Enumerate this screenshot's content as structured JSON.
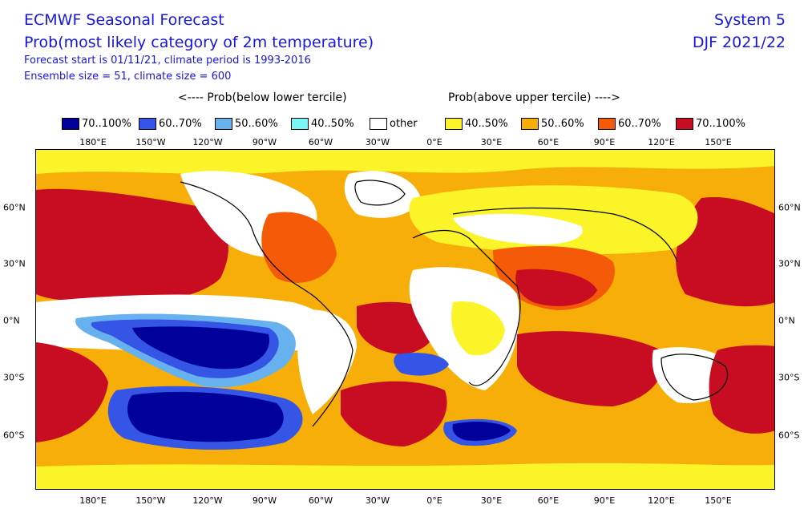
{
  "header": {
    "title": "ECMWF Seasonal Forecast",
    "subtitle": "Prob(most likely category of 2m temperature)",
    "line1": "Forecast start is 01/11/21, climate period is 1993-2016",
    "line2": "Ensemble size = 51, climate size = 600",
    "system": "System 5",
    "season": "DJF 2021/22"
  },
  "legend": {
    "below_header": "<---- Prob(below lower tercile)",
    "above_header": "Prob(above upper tercile) ---->",
    "items": [
      {
        "label": "70..100%",
        "color": "#00009a"
      },
      {
        "label": "60..70%",
        "color": "#3455e6"
      },
      {
        "label": "50..60%",
        "color": "#67b1ef"
      },
      {
        "label": "40..50%",
        "color": "#7cf5f5"
      },
      {
        "label": "other",
        "color": "#ffffff"
      },
      {
        "label": "40..50%",
        "color": "#fbf429"
      },
      {
        "label": "50..60%",
        "color": "#f7ae08"
      },
      {
        "label": "60..70%",
        "color": "#f45a07"
      },
      {
        "label": "70..100%",
        "color": "#c80c22"
      }
    ]
  },
  "axes": {
    "lon_labels": [
      "180°E",
      "150°W",
      "120°W",
      "90°W",
      "60°W",
      "30°W",
      "0°E",
      "30°E",
      "60°E",
      "90°E",
      "120°E",
      "150°E"
    ],
    "lat_labels": [
      "60°N",
      "30°N",
      "0°N",
      "30°S",
      "60°S"
    ]
  }
}
